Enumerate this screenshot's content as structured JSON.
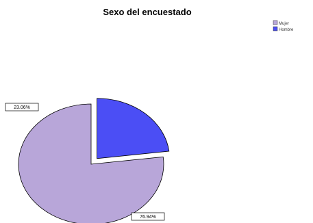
{
  "chart_data": {
    "type": "pie",
    "title": "Sexo del encuestado",
    "categories": [
      "Mujer",
      "Hombre"
    ],
    "values": [
      76.94,
      23.06
    ],
    "data_labels": [
      "76.94%",
      "23.06%"
    ],
    "colors": [
      "#b8a6d9",
      "#4b4ef5"
    ],
    "exploded": [
      "Hombre"
    ],
    "legend_position": "top-right"
  }
}
